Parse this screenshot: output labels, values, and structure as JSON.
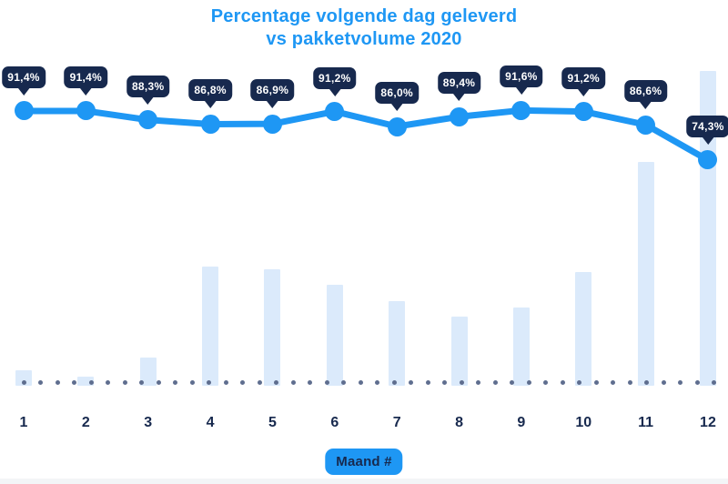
{
  "colors": {
    "accent_blue": "#1e97f4",
    "navy": "#17294e",
    "bar_fill": "#dbeafb",
    "baseline_dot": "#5f6e8f",
    "tooltip_text": "#ffffff",
    "background": "#ffffff"
  },
  "title": {
    "line1": "Percentage volgende dag geleverd",
    "line2": "vs pakketvolume 2020"
  },
  "x_axis_title": "Maand #",
  "chart_data": {
    "type": "combo_line_bar",
    "title": "Percentage volgende dag geleverd vs pakketvolume 2020",
    "xlabel": "Maand #",
    "ylabel": "",
    "grid": false,
    "legend_position": "none",
    "y_axis_visible": false,
    "baseline_style": "dotted",
    "categories": [
      "1",
      "2",
      "3",
      "4",
      "5",
      "6",
      "7",
      "8",
      "9",
      "10",
      "11",
      "12"
    ],
    "series": [
      {
        "name": "Percentage volgende dag geleverd",
        "type": "line",
        "unit": "%",
        "values": [
          91.4,
          91.4,
          88.3,
          86.8,
          86.9,
          91.2,
          86.0,
          89.4,
          91.6,
          91.2,
          86.6,
          74.3
        ],
        "point_labels": [
          "91,4%",
          "91,4%",
          "88,3%",
          "86,8%",
          "86,9%",
          "91,2%",
          "86,0%",
          "89,4%",
          "91,6%",
          "91,2%",
          "86,6%",
          "74,3%"
        ],
        "ylim_estimate": [
          70,
          95
        ]
      },
      {
        "name": "Pakketvolume 2020",
        "type": "bar",
        "unit": "relative volume, unlabeled axis (December = 100)",
        "values": [
          5,
          3,
          9,
          38,
          37,
          32,
          27,
          22,
          25,
          36,
          71,
          100
        ]
      }
    ]
  }
}
